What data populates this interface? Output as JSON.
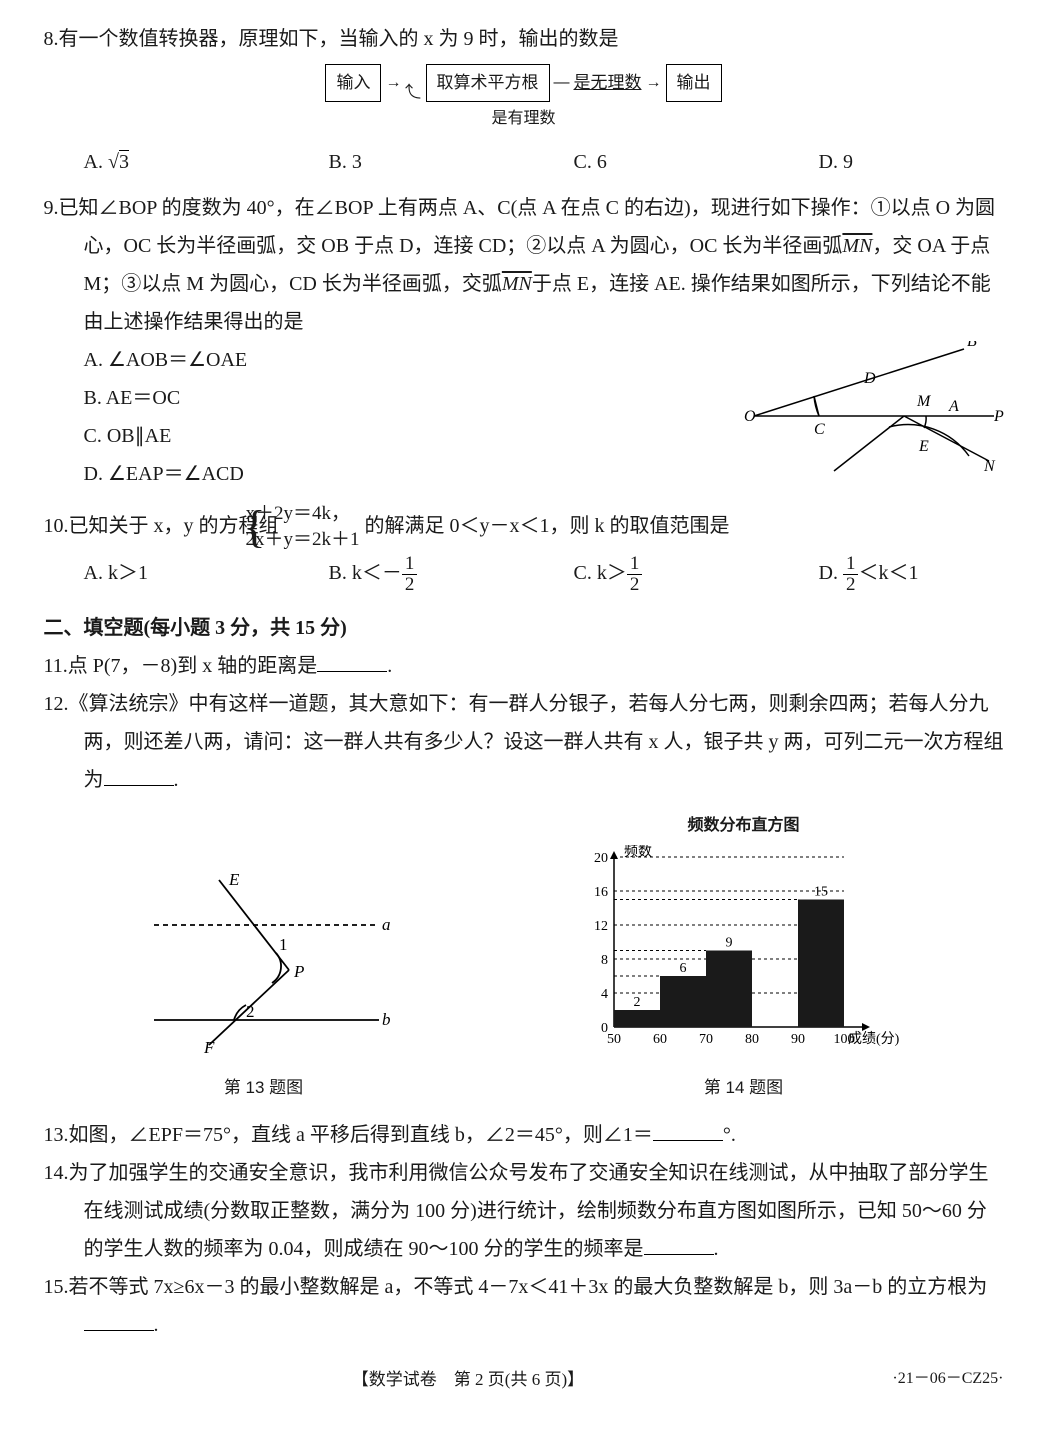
{
  "q8": {
    "num": "8.",
    "text": "有一个数值转换器，原理如下，当输入的 x 为 9 时，输出的数是",
    "flow": {
      "in": "输入",
      "op": "取算术平方根",
      "cond1": "是无理数",
      "out": "输出",
      "cond2": "是有理数"
    },
    "opts": {
      "A_pre": "A. ",
      "A_val": "3",
      "B": "B. 3",
      "C": "C. 6",
      "D": "D. 9"
    }
  },
  "q9": {
    "num": "9.",
    "text": "已知∠BOP 的度数为 40°，在∠BOP 上有两点 A、C(点 A 在点 C 的右边)，现进行如下操作：①以点 O 为圆心，OC 长为半径画弧，交 OB 于点 D，连接 CD；②以点 A 为圆心，OC 长为半径画弧",
    "text2_pre": "，交 OA 于点 M；③以点 M 为圆心，CD 长为半径画弧，交弧",
    "text2_post": "于点 E，连接 AE. 操作结果如图所示，下列结论不能由上述操作结果得出的是",
    "arc1": "MN",
    "arc2": "MN",
    "opts": {
      "A": "A. ∠AOB＝∠OAE",
      "B": "B. AE＝OC",
      "C": "C. OB∥AE",
      "D": "D. ∠EAP＝∠ACD"
    },
    "fig": {
      "O": "O",
      "A": "A",
      "B": "B",
      "C": "C",
      "D": "D",
      "E": "E",
      "M": "M",
      "N": "N",
      "P": "P"
    }
  },
  "q10": {
    "num": "10.",
    "text_pre": "已知关于 x，y 的方程组",
    "eq1": "x＋2y＝4k，",
    "eq2": "2x＋y＝2k＋1",
    "text_post": "的解满足 0＜y－x＜1，则 k 的取值范围是",
    "opts": {
      "A": "A. k＞1",
      "B_pre": "B. k＜－",
      "C_pre": "C. k＞",
      "D_pre": "D. ",
      "D_post": "＜k＜1",
      "half_n": "1",
      "half_d": "2"
    }
  },
  "section2": "二、填空题(每小题 3 分，共 15 分)",
  "q11": {
    "num": "11.",
    "text_pre": "点 P(7，－8)到 x 轴的距离是",
    "period": "."
  },
  "q12": {
    "num": "12.",
    "text1": "《算法统宗》中有这样一道题，其大意如下：有一群人分银子，若每人分七两，则剩余四两；若每人分九两，则还差八两，请问：这一群人共有多少人？设这一群人共有 x 人，银子共 y 两，可列二元一次方程组为",
    "period": "."
  },
  "q13": {
    "num": "13.",
    "text_pre": "如图，∠EPF＝75°，直线 a 平移后得到直线 b，∠2＝45°，则∠1＝",
    "text_post": "°.",
    "cap": "第 13 题图",
    "fig": {
      "E": "E",
      "F": "F",
      "P": "P",
      "a": "a",
      "b": "b",
      "ang1": "1",
      "ang2": "2"
    }
  },
  "q14": {
    "num": "14.",
    "text": "为了加强学生的交通安全意识，我市利用微信公众号发布了交通安全知识在线测试，从中抽取了部分学生在线测试成绩(分数取正整数，满分为 100 分)进行统计，绘制频数分布直方图如图所示，已知 50～60 分的学生人数的频率为 0.04，则成绩在 90～100 分的学生的频率是",
    "period": ".",
    "cap": "第 14 题图",
    "chart": {
      "title": "频数分布直方图",
      "ylabel": "频数",
      "xlabel": "成绩(分)",
      "xticks": [
        "50",
        "60",
        "70",
        "80",
        "90",
        "100"
      ],
      "yticks": [
        "0",
        "4",
        "8",
        "12",
        "16",
        "20"
      ],
      "bars": [
        {
          "x": 50,
          "w": 10,
          "h": 2,
          "label": "2",
          "color": "#1a1a1a"
        },
        {
          "x": 60,
          "w": 10,
          "h": 6,
          "label": "6",
          "color": "#1a1a1a"
        },
        {
          "x": 70,
          "w": 10,
          "h": 9,
          "label": "9",
          "color": "#1a1a1a"
        },
        {
          "x": 90,
          "w": 10,
          "h": 15,
          "label": "15",
          "color": "#1a1a1a"
        }
      ],
      "ymax": 20,
      "xmin": 50,
      "xmax": 100
    }
  },
  "q15": {
    "num": "15.",
    "text": "若不等式 7x≥6x－3 的最小整数解是 a，不等式 4－7x＜41＋3x 的最大负整数解是 b，则 3a－b 的立方根为",
    "period": "."
  },
  "footer": {
    "main": "【数学试卷　第 2 页(共 6 页)】",
    "code": "·21－06－CZ25·"
  }
}
